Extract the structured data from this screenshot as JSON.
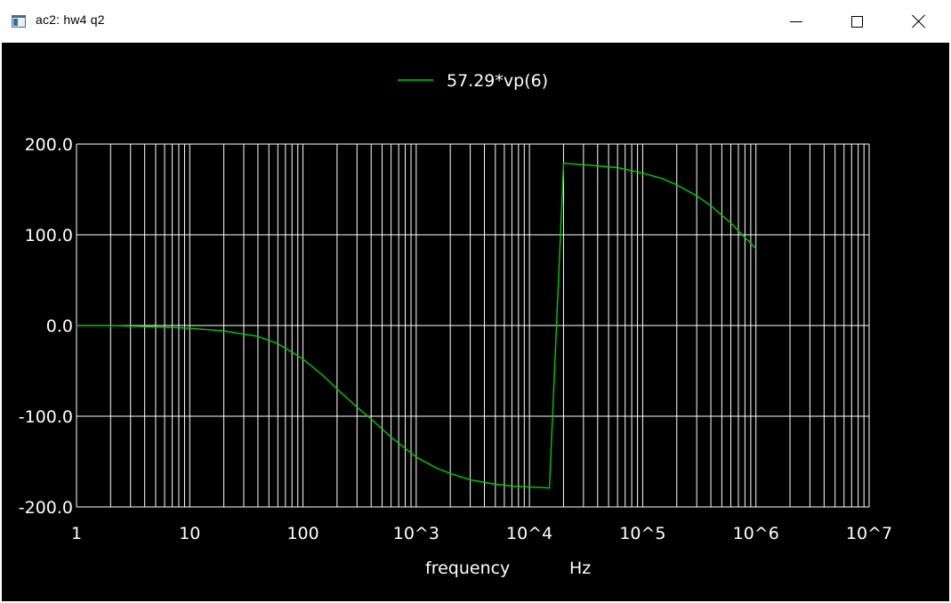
{
  "window": {
    "title": "ac2: hw4 q2",
    "controls": {
      "minimize": "minimize-icon",
      "maximize": "maximize-icon",
      "close": "close-icon"
    }
  },
  "colors": {
    "background": "#000000",
    "grid": "#ffffff",
    "series": "#00cc00"
  },
  "chart_data": {
    "type": "line",
    "title": "",
    "xlabel": "frequency",
    "xunit": "Hz",
    "ylabel": "",
    "xscale": "log",
    "xlim": [
      1,
      10000000
    ],
    "ylim": [
      -200,
      200
    ],
    "grid": true,
    "legend": "top-center",
    "xticks": [
      {
        "value": 1,
        "label": "1"
      },
      {
        "value": 10,
        "label": "10"
      },
      {
        "value": 100,
        "label": "100"
      },
      {
        "value": 1000,
        "label": "10^3"
      },
      {
        "value": 10000,
        "label": "10^4"
      },
      {
        "value": 100000,
        "label": "10^5"
      },
      {
        "value": 1000000,
        "label": "10^6"
      },
      {
        "value": 10000000,
        "label": "10^7"
      }
    ],
    "yticks": [
      {
        "value": 200,
        "label": "200.0"
      },
      {
        "value": 100,
        "label": "100.0"
      },
      {
        "value": 0,
        "label": "0.0"
      },
      {
        "value": -100,
        "label": "-100.0"
      },
      {
        "value": -200,
        "label": "-200.0"
      }
    ],
    "series": [
      {
        "name": "57.29*vp(6)",
        "x": [
          1,
          2,
          5,
          10,
          20,
          40,
          60,
          100,
          150,
          200,
          300,
          400,
          600,
          1000,
          1500,
          2000,
          3000,
          5000,
          7000,
          10000,
          15000,
          20000,
          25000,
          40000,
          60000,
          100000,
          150000,
          200000,
          300000,
          400000,
          600000,
          800000,
          1000000
        ],
        "y": [
          0,
          0,
          -1.5,
          -3,
          -6,
          -12,
          -20,
          -37,
          -55,
          -70,
          -90,
          -103,
          -123,
          -145,
          -157,
          -163,
          -170,
          -175,
          -177,
          -178,
          -179,
          179,
          178,
          176,
          174,
          168,
          162,
          155,
          143,
          132,
          113,
          97,
          85
        ]
      }
    ]
  }
}
